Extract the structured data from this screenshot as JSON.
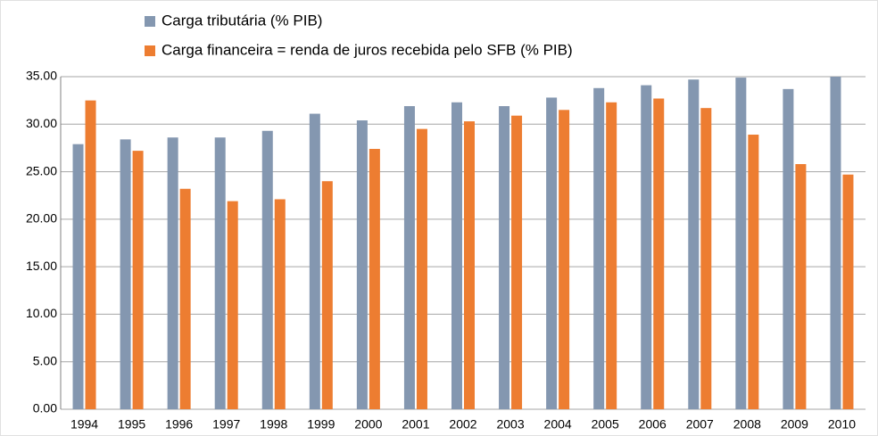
{
  "chart_data": {
    "type": "bar",
    "categories": [
      "1994",
      "1995",
      "1996",
      "1997",
      "1998",
      "1999",
      "2000",
      "2001",
      "2002",
      "2003",
      "2004",
      "2005",
      "2006",
      "2007",
      "2008",
      "2009",
      "2010"
    ],
    "series": [
      {
        "name": "Carga tributária (% PIB)",
        "color": "#8497b0",
        "values": [
          27.9,
          28.4,
          28.6,
          28.6,
          29.3,
          31.1,
          30.4,
          31.9,
          32.3,
          31.9,
          32.8,
          33.8,
          34.1,
          34.7,
          34.9,
          33.7,
          35.0
        ]
      },
      {
        "name": "Carga financeira = renda de juros recebida pelo SFB (% PIB)",
        "color": "#ed7d31",
        "values": [
          32.5,
          27.2,
          23.2,
          21.9,
          22.1,
          24.0,
          27.4,
          29.5,
          30.3,
          30.9,
          31.5,
          32.3,
          32.7,
          31.7,
          28.9,
          25.8,
          24.7
        ]
      }
    ],
    "ylim": [
      0,
      35
    ],
    "yticks": [
      {
        "value": 0,
        "label": "0.00"
      },
      {
        "value": 5,
        "label": "5.00"
      },
      {
        "value": 10,
        "label": "10.00"
      },
      {
        "value": 15,
        "label": "15.00"
      },
      {
        "value": 20,
        "label": "20.00"
      },
      {
        "value": 25,
        "label": "25.00"
      },
      {
        "value": 30,
        "label": "30.00"
      },
      {
        "value": 35,
        "label": "35.00"
      }
    ],
    "grid": true
  }
}
